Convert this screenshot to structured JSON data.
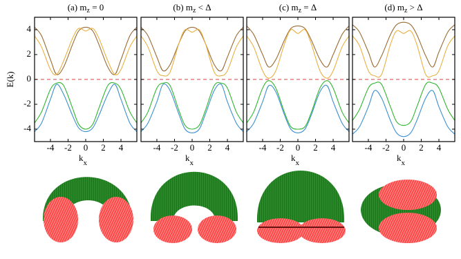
{
  "chart_data": [
    {
      "type": "line",
      "title": {
        "prefix": "(a) m",
        "sub": "z",
        "suffix": " = 0"
      },
      "ylabel": "E(k)",
      "xlabel": {
        "main": "k",
        "sub": "x"
      },
      "x": [
        -5.8,
        -5,
        -4,
        -3.3,
        -2.5,
        -1.5,
        -0.8,
        0,
        0.8,
        1.5,
        2.5,
        3.3,
        4,
        5,
        5.8
      ],
      "xlim": [
        -5.8,
        5.8
      ],
      "ylim": [
        -5,
        5
      ],
      "xticks": [
        -4,
        -2,
        0,
        2,
        4
      ],
      "yticks": [
        -4,
        -2,
        0,
        2,
        4
      ],
      "ytick_labels": true,
      "hline": 0,
      "hline_color": "#e06666",
      "series": [
        {
          "color": "#9a6a32",
          "values": [
            4.2,
            3.5,
            1.6,
            0.4,
            1.0,
            2.8,
            3.9,
            4.2,
            3.9,
            2.8,
            1.0,
            0.4,
            1.6,
            3.5,
            4.2
          ]
        },
        {
          "color": "#e8b040",
          "values": [
            3.5,
            2.6,
            0.8,
            0.4,
            1.5,
            3.3,
            4.1,
            3.9,
            4.1,
            3.3,
            1.5,
            0.4,
            0.8,
            2.6,
            3.5
          ]
        },
        {
          "color": "#2fb52f",
          "values": [
            -3.5,
            -2.6,
            -0.8,
            -0.3,
            -0.5,
            -2.3,
            -3.6,
            -4.0,
            -3.6,
            -2.3,
            -0.5,
            -0.3,
            -0.8,
            -2.6,
            -3.5
          ]
        },
        {
          "color": "#3a8fd0",
          "values": [
            -4.2,
            -3.5,
            -1.6,
            -0.4,
            -1.2,
            -2.9,
            -3.9,
            -4.2,
            -3.9,
            -2.9,
            -1.2,
            -0.4,
            -1.6,
            -3.5,
            -4.2
          ]
        }
      ]
    },
    {
      "type": "line",
      "title": {
        "prefix": "(b) m",
        "sub": "z",
        "suffix": " < Δ"
      },
      "xlabel": {
        "main": "k",
        "sub": "x"
      },
      "x": [
        -5.8,
        -5,
        -4,
        -3.3,
        -2.5,
        -1.5,
        -0.8,
        0,
        0.8,
        1.5,
        2.5,
        3.3,
        4,
        5,
        5.8
      ],
      "xlim": [
        -5.8,
        5.8
      ],
      "ylim": [
        -5,
        5
      ],
      "xticks": [
        -4,
        -2,
        0,
        2,
        4
      ],
      "yticks": [
        -4,
        -2,
        0,
        2,
        4
      ],
      "ytick_labels": false,
      "hline": 0,
      "hline_color": "#e06666",
      "series": [
        {
          "color": "#9a6a32",
          "values": [
            4.2,
            3.5,
            1.8,
            0.7,
            1.2,
            2.9,
            3.9,
            4.2,
            3.9,
            2.9,
            1.2,
            0.7,
            1.8,
            3.5,
            4.2
          ]
        },
        {
          "color": "#e8b040",
          "values": [
            3.5,
            2.6,
            0.7,
            0.3,
            0.6,
            2.9,
            4.0,
            3.8,
            4.0,
            2.9,
            0.6,
            0.3,
            0.7,
            2.6,
            3.5
          ]
        },
        {
          "color": "#2fb52f",
          "values": [
            -3.5,
            -2.6,
            -0.7,
            -0.3,
            -0.5,
            -2.5,
            -3.7,
            -4.0,
            -3.7,
            -2.5,
            -0.5,
            -0.3,
            -0.7,
            -2.6,
            -3.5
          ]
        },
        {
          "color": "#3a8fd0",
          "values": [
            -4.2,
            -3.5,
            -1.8,
            -0.4,
            -0.9,
            -2.8,
            -4.0,
            -4.3,
            -4.0,
            -2.8,
            -0.9,
            -0.4,
            -1.8,
            -3.5,
            -4.2
          ]
        }
      ]
    },
    {
      "type": "line",
      "title": {
        "prefix": "(c) m",
        "sub": "z",
        "suffix": " = Δ"
      },
      "xlabel": {
        "main": "k",
        "sub": "x"
      },
      "x": [
        -5.8,
        -5,
        -4,
        -3.3,
        -2.5,
        -1.5,
        -0.8,
        0,
        0.8,
        1.5,
        2.5,
        3.3,
        4,
        5,
        5.8
      ],
      "xlim": [
        -5.8,
        5.8
      ],
      "ylim": [
        -5,
        5
      ],
      "xticks": [
        -4,
        -2,
        0,
        2,
        4
      ],
      "yticks": [
        -4,
        -2,
        0,
        2,
        4
      ],
      "ytick_labels": false,
      "hline": 0,
      "hline_color": "#e06666",
      "series": [
        {
          "color": "#9a6a32",
          "values": [
            4.3,
            3.6,
            2.0,
            1.0,
            1.6,
            3.2,
            4.1,
            4.3,
            4.1,
            3.2,
            1.6,
            1.0,
            2.0,
            3.6,
            4.3
          ]
        },
        {
          "color": "#e8b040",
          "values": [
            3.5,
            2.6,
            0.7,
            0.1,
            0.7,
            2.9,
            4.0,
            3.7,
            4.0,
            2.9,
            0.7,
            0.1,
            0.7,
            2.6,
            3.5
          ]
        },
        {
          "color": "#2fb52f",
          "values": [
            -3.5,
            -2.6,
            -0.7,
            -0.1,
            -0.7,
            -2.7,
            -3.8,
            -4.0,
            -3.8,
            -2.7,
            -0.7,
            -0.1,
            -0.7,
            -2.6,
            -3.5
          ]
        },
        {
          "color": "#3a8fd0",
          "values": [
            -4.2,
            -3.5,
            -1.8,
            -0.5,
            -1.0,
            -2.9,
            -4.0,
            -4.3,
            -4.0,
            -2.9,
            -1.0,
            -0.5,
            -1.8,
            -3.5,
            -4.2
          ]
        }
      ]
    },
    {
      "type": "line",
      "title": {
        "prefix": "(d) m",
        "sub": "z",
        "suffix": " > Δ"
      },
      "xlabel": {
        "main": "k",
        "sub": "x"
      },
      "x": [
        -5.8,
        -5,
        -4,
        -3.3,
        -2.5,
        -1.5,
        -0.8,
        0,
        0.8,
        1.5,
        2.5,
        3.3,
        4,
        5,
        5.8
      ],
      "xlim": [
        -5.8,
        5.8
      ],
      "ylim": [
        -5,
        5
      ],
      "xticks": [
        -4,
        -2,
        0,
        2,
        4
      ],
      "yticks": [
        -4,
        -2,
        0,
        2,
        4
      ],
      "ytick_labels": false,
      "hline": 0,
      "hline_color": "#e06666",
      "series": [
        {
          "color": "#9a6a32",
          "values": [
            4.4,
            3.8,
            2.2,
            1.0,
            1.9,
            3.6,
            4.4,
            4.6,
            4.4,
            3.6,
            1.9,
            1.0,
            2.2,
            3.8,
            4.4
          ]
        },
        {
          "color": "#e8b040",
          "values": [
            3.5,
            2.7,
            0.7,
            0.3,
            0.4,
            2.8,
            3.9,
            3.7,
            3.9,
            2.8,
            0.4,
            0.3,
            0.7,
            2.7,
            3.5
          ]
        },
        {
          "color": "#2fb52f",
          "values": [
            -3.3,
            -2.4,
            -0.7,
            -0.3,
            -0.4,
            -2.2,
            -3.4,
            -3.7,
            -3.4,
            -2.2,
            -0.4,
            -0.3,
            -0.7,
            -2.4,
            -3.3
          ]
        },
        {
          "color": "#3a8fd0",
          "values": [
            -4.4,
            -3.8,
            -2.2,
            -0.9,
            -1.5,
            -3.3,
            -4.3,
            -4.6,
            -4.3,
            -3.3,
            -1.5,
            -0.9,
            -2.2,
            -3.8,
            -4.4
          ]
        }
      ]
    }
  ]
}
